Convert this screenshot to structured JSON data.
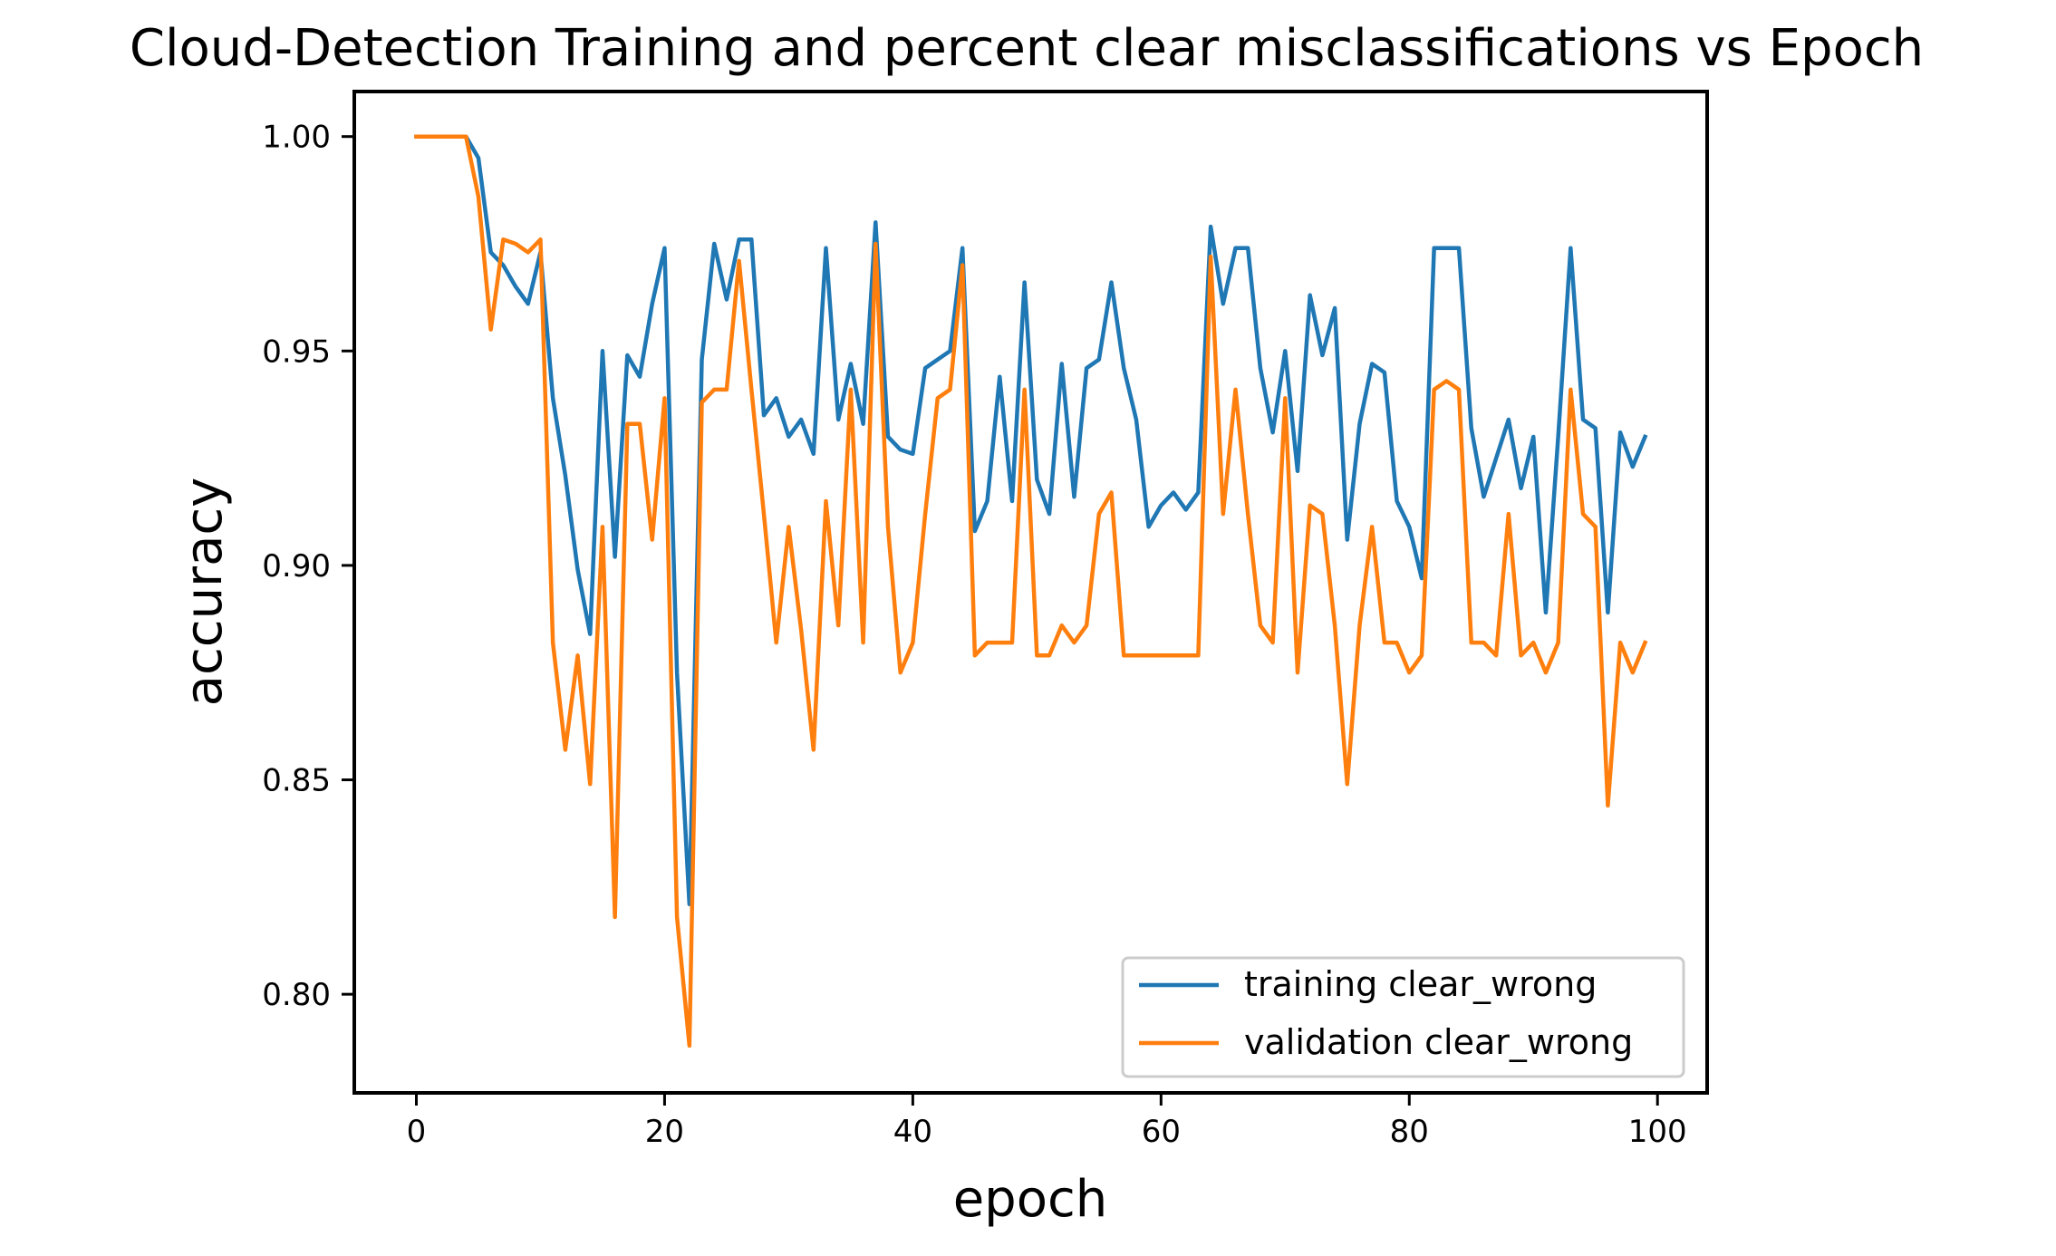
{
  "chart_data": {
    "type": "line",
    "title": "Cloud-Detection Training and percent clear misclassifications vs Epoch",
    "xlabel": "epoch",
    "ylabel": "accuracy",
    "xlim": [
      -5,
      104
    ],
    "ylim": [
      0.777,
      1.0105
    ],
    "xticks": [
      0,
      20,
      40,
      60,
      80,
      100
    ],
    "yticks": [
      0.8,
      0.85,
      0.9,
      0.95,
      1.0
    ],
    "xtick_labels": [
      "0",
      "20",
      "40",
      "60",
      "80",
      "100"
    ],
    "ytick_labels": [
      "0.80",
      "0.85",
      "0.90",
      "0.95",
      "1.00"
    ],
    "grid": false,
    "legend_position": "lower-right",
    "series": [
      {
        "name": "training clear_wrong",
        "color": "#1f77b4",
        "values": [
          1.0,
          1.0,
          1.0,
          1.0,
          1.0,
          0.995,
          0.973,
          0.97,
          0.965,
          0.961,
          0.973,
          0.939,
          0.921,
          0.899,
          0.884,
          0.95,
          0.902,
          0.949,
          0.944,
          0.961,
          0.974,
          0.875,
          0.821,
          0.948,
          0.975,
          0.962,
          0.976,
          0.976,
          0.935,
          0.939,
          0.93,
          0.934,
          0.926,
          0.974,
          0.934,
          0.947,
          0.933,
          0.98,
          0.93,
          0.927,
          0.926,
          0.946,
          0.948,
          0.95,
          0.974,
          0.908,
          0.915,
          0.944,
          0.915,
          0.966,
          0.92,
          0.912,
          0.947,
          0.916,
          0.946,
          0.948,
          0.966,
          0.946,
          0.934,
          0.909,
          0.914,
          0.917,
          0.913,
          0.917,
          0.979,
          0.961,
          0.974,
          0.974,
          0.946,
          0.931,
          0.95,
          0.922,
          0.963,
          0.949,
          0.96,
          0.906,
          0.933,
          0.947,
          0.945,
          0.915,
          0.909,
          0.897,
          0.974,
          0.974,
          0.974,
          0.932,
          0.916,
          0.925,
          0.934,
          0.918,
          0.93,
          0.889,
          0.93,
          0.974,
          0.934,
          0.932,
          0.889,
          0.931,
          0.923,
          0.93
        ]
      },
      {
        "name": "validation clear_wrong",
        "color": "#ff7f0e",
        "values": [
          1.0,
          1.0,
          1.0,
          1.0,
          1.0,
          0.986,
          0.955,
          0.976,
          0.975,
          0.973,
          0.976,
          0.882,
          0.857,
          0.879,
          0.849,
          0.909,
          0.818,
          0.933,
          0.933,
          0.906,
          0.939,
          0.818,
          0.788,
          0.938,
          0.941,
          0.941,
          0.971,
          0.941,
          0.912,
          0.882,
          0.909,
          0.885,
          0.857,
          0.915,
          0.886,
          0.941,
          0.882,
          0.975,
          0.909,
          0.875,
          0.882,
          0.912,
          0.939,
          0.941,
          0.97,
          0.879,
          0.882,
          0.882,
          0.882,
          0.941,
          0.879,
          0.879,
          0.886,
          0.882,
          0.886,
          0.912,
          0.917,
          0.879,
          0.879,
          0.879,
          0.879,
          0.879,
          0.879,
          0.879,
          0.972,
          0.912,
          0.941,
          0.912,
          0.886,
          0.882,
          0.939,
          0.875,
          0.914,
          0.912,
          0.886,
          0.849,
          0.886,
          0.909,
          0.882,
          0.882,
          0.875,
          0.879,
          0.941,
          0.943,
          0.941,
          0.882,
          0.882,
          0.879,
          0.912,
          0.879,
          0.882,
          0.875,
          0.882,
          0.941,
          0.912,
          0.909,
          0.844,
          0.882,
          0.875,
          0.882
        ]
      }
    ]
  }
}
